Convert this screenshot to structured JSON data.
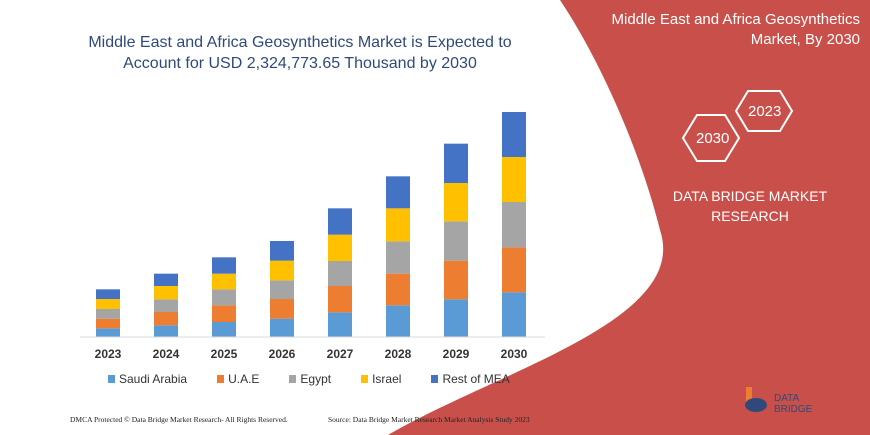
{
  "title": "Middle East and Africa Geosynthetics Market is Expected to Account for USD 2,324,773.65 Thousand by 2030",
  "side_panel": {
    "title": "Middle East and Africa Geosynthetics Market, By 2030",
    "hex_labels": [
      "2030",
      "2023"
    ],
    "brand": "DATA BRIDGE MARKET RESEARCH",
    "color": "#C9504A"
  },
  "footer": {
    "left": "DMCA Protected © Data Bridge Market Research- All Rights Reserved.",
    "right": "Source: Data Bridge Market Research Market Analysis Study 2023"
  },
  "logo": {
    "text": "DATA BRIDGE"
  },
  "chart_data": {
    "type": "bar",
    "stacked": true,
    "categories": [
      "2023",
      "2024",
      "2025",
      "2026",
      "2027",
      "2028",
      "2029",
      "2030"
    ],
    "values_note_units": "relative (no value axis shown)",
    "series": [
      {
        "name": "Saudi Arabia",
        "color": "#5B9BD5",
        "values": [
          26,
          35,
          45,
          55,
          74,
          95,
          113,
          134
        ]
      },
      {
        "name": "U.A.E",
        "color": "#ED7D31",
        "values": [
          29,
          40,
          50,
          59,
          79,
          95,
          116,
          135
        ]
      },
      {
        "name": "Egypt",
        "color": "#A5A5A5",
        "values": [
          29,
          38,
          48,
          56,
          75,
          97,
          118,
          136
        ]
      },
      {
        "name": "Israel",
        "color": "#FFC000",
        "values": [
          30,
          40,
          47,
          59,
          79,
          99,
          115,
          135
        ]
      },
      {
        "name": "Rest of MEA",
        "color": "#4472C4",
        "values": [
          29,
          37,
          49,
          59,
          79,
          96,
          118,
          135
        ]
      }
    ],
    "legend_position": "bottom",
    "grid": false
  }
}
